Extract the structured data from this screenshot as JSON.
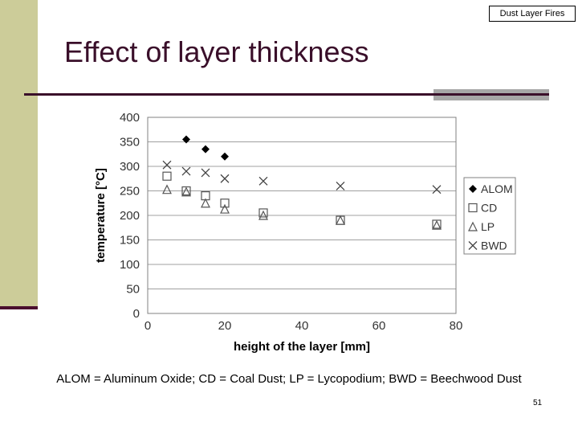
{
  "slide": {
    "header_tag": "Dust Layer Fires",
    "title": "Effect of layer thickness",
    "caption": "ALOM = Aluminum Oxide; CD = Coal Dust; LP = Lycopodium; BWD = Beechwood Dust",
    "page_number": "51"
  },
  "chart_data": {
    "type": "scatter",
    "title": "",
    "xlabel": "height of the layer [mm]",
    "ylabel": "temperature [°C]",
    "xlim": [
      0,
      80
    ],
    "ylim": [
      0,
      400
    ],
    "x_ticks": [
      0,
      20,
      40,
      60,
      80
    ],
    "y_ticks": [
      0,
      50,
      100,
      150,
      200,
      250,
      300,
      350,
      400
    ],
    "grid": true,
    "legend_position": "right",
    "series": [
      {
        "name": "ALOM",
        "marker": "diamond",
        "color": "#000000",
        "points": [
          [
            10,
            355
          ],
          [
            15,
            335
          ],
          [
            20,
            320
          ]
        ]
      },
      {
        "name": "CD",
        "marker": "square",
        "color": "#000000",
        "points": [
          [
            5,
            280
          ],
          [
            10,
            250
          ],
          [
            15,
            240
          ],
          [
            20,
            225
          ],
          [
            30,
            205
          ],
          [
            50,
            190
          ],
          [
            75,
            182
          ]
        ]
      },
      {
        "name": "LP",
        "marker": "triangle",
        "color": "#000000",
        "points": [
          [
            5,
            253
          ],
          [
            10,
            248
          ],
          [
            15,
            225
          ],
          [
            20,
            213
          ],
          [
            30,
            200
          ],
          [
            50,
            190
          ],
          [
            75,
            180
          ]
        ]
      },
      {
        "name": "BWD",
        "marker": "x",
        "color": "#000000",
        "points": [
          [
            5,
            303
          ],
          [
            10,
            290
          ],
          [
            15,
            287
          ],
          [
            20,
            275
          ],
          [
            30,
            270
          ],
          [
            50,
            260
          ],
          [
            75,
            253
          ]
        ]
      }
    ]
  }
}
